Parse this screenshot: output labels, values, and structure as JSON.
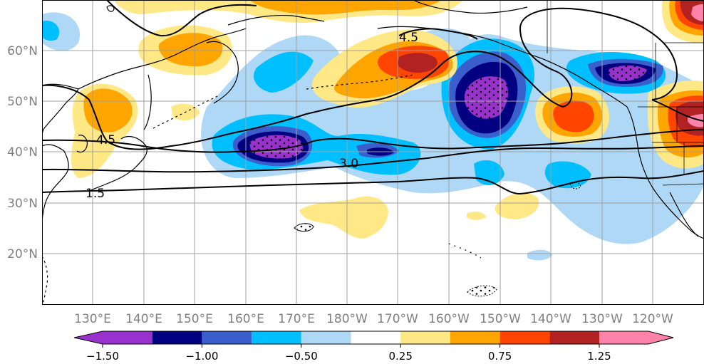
{
  "map": {
    "lon_labels": [
      "130°E",
      "140°E",
      "150°E",
      "160°E",
      "170°E",
      "180°W",
      "170°W",
      "160°W",
      "150°W",
      "140°W",
      "130°W",
      "120°W"
    ],
    "lat_labels": [
      "60°N",
      "50°N",
      "40°N",
      "30°N",
      "20°N"
    ],
    "contour_labels": [
      "4.5",
      "3.0",
      "1.5",
      "4.5"
    ],
    "colors": {
      "neg_150": "#9932cc",
      "neg_125": "#000080",
      "neg_100": "#3a5fcd",
      "neg_075": "#00bfff",
      "neg_050": "#aed8f5",
      "neutral": "#ffffff",
      "pos_025": "#ffe885",
      "pos_050": "#ffa500",
      "pos_075": "#ff4500",
      "pos_100": "#b22222",
      "pos_125": "#ff82ab",
      "grid": "#a0a0a0",
      "coast": "#000000"
    }
  },
  "colorbar": {
    "tick_labels": [
      "−1.50",
      "−1.00",
      "−0.50",
      "0.25",
      "0.75",
      "1.25"
    ],
    "colors": [
      "#9932cc",
      "#000080",
      "#3a5fcd",
      "#00bfff",
      "#aed8f5",
      "#ffffff",
      "#ffe885",
      "#ffa500",
      "#ff4500",
      "#b22222",
      "#ff82ab"
    ]
  }
}
